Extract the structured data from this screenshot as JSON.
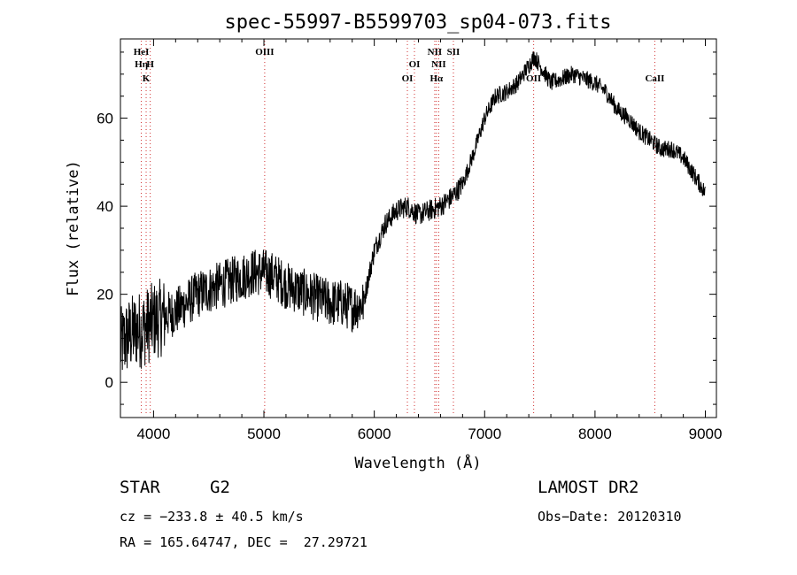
{
  "chart_data": {
    "type": "line",
    "title": "spec-55997-B5599703_sp04-073.fits",
    "xlabel": "Wavelength (Å)",
    "ylabel": "Flux (relative)",
    "xlim": [
      3700,
      9100
    ],
    "ylim": [
      -8,
      78
    ],
    "x_ticks": [
      4000,
      5000,
      6000,
      7000,
      8000,
      9000
    ],
    "y_ticks": [
      0,
      20,
      40,
      60
    ],
    "grid": false,
    "series": [
      {
        "x": [
          3700,
          3750,
          3800,
          3850,
          3900,
          3950,
          4000,
          4100,
          4200,
          4300,
          4400,
          4500,
          4600,
          4700,
          4800,
          4900,
          5000,
          5100,
          5200,
          5300,
          5400,
          5500,
          5600,
          5700,
          5800,
          5900,
          6000,
          6100,
          6200,
          6300,
          6400,
          6500,
          6600,
          6700,
          6800,
          6900,
          7000,
          7100,
          7200,
          7300,
          7400,
          7450,
          7500,
          7600,
          7700,
          7800,
          7900,
          8000,
          8100,
          8200,
          8300,
          8400,
          8500,
          8600,
          8700,
          8800,
          8900,
          9000
        ],
        "y": [
          8,
          10,
          11,
          12,
          12,
          13,
          14,
          15,
          16,
          18,
          20,
          21,
          22,
          23,
          24,
          25,
          25,
          24,
          22,
          21,
          20,
          19,
          18,
          18,
          17,
          18,
          30,
          36,
          39,
          40,
          38,
          39,
          40,
          42,
          45,
          52,
          60,
          65,
          66,
          68,
          72,
          74,
          72,
          68,
          69,
          70,
          69,
          68,
          66,
          62,
          60,
          57,
          55,
          53,
          53,
          51,
          47,
          43
        ]
      }
    ],
    "line_markers": [
      {
        "x": 3889,
        "labels": [
          "HeI",
          "Hη"
        ]
      },
      {
        "x": 3933,
        "labels": [
          "K"
        ]
      },
      {
        "x": 3970,
        "labels": [
          "H"
        ]
      },
      {
        "x": 5007,
        "labels": [
          "OIII"
        ]
      },
      {
        "x": 6300,
        "labels": [
          "OI"
        ]
      },
      {
        "x": 6364,
        "labels": [
          "OI"
        ]
      },
      {
        "x": 6548,
        "labels": [
          "NII"
        ]
      },
      {
        "x": 6563,
        "labels": [
          "Hα"
        ]
      },
      {
        "x": 6584,
        "labels": [
          "NII"
        ]
      },
      {
        "x": 6717,
        "labels": [
          "SII"
        ]
      },
      {
        "x": 7444,
        "labels": [
          "OII"
        ]
      },
      {
        "x": 8542,
        "labels": [
          "CaII"
        ]
      }
    ]
  },
  "info": {
    "class": "STAR",
    "subclass": "G2",
    "survey": "LAMOST DR2",
    "cz": "cz = −233.8 ± 40.5 km/s",
    "obs_date": "Obs−Date: 20120310",
    "radec": "RA = 165.64747, DEC =  27.29721"
  }
}
